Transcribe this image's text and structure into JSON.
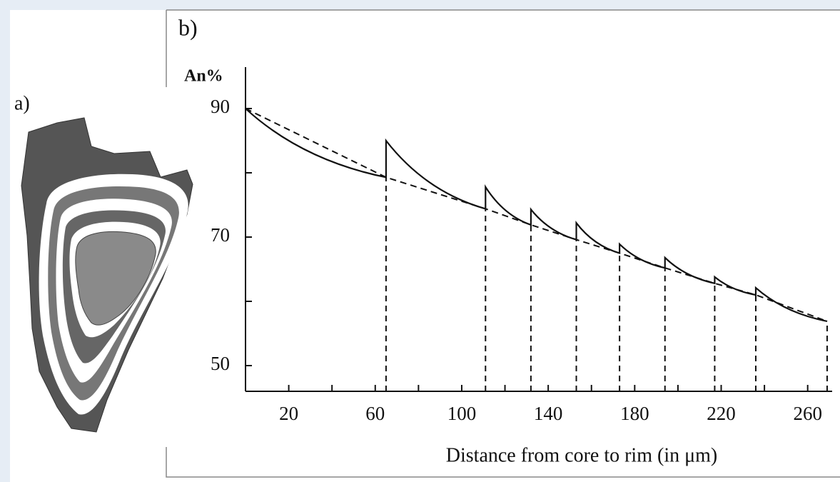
{
  "panel_a": {
    "label": "a)"
  },
  "chart_data": {
    "type": "line",
    "panel_label": "b)",
    "y_label": "An%",
    "x_label": "Distance from core to rim (in μm)",
    "x": [
      0,
      65,
      65,
      111,
      111,
      132,
      132,
      153,
      153,
      173,
      173,
      194,
      194,
      217,
      217,
      236,
      236,
      269
    ],
    "values": [
      90,
      79.3,
      85,
      74.4,
      77.8,
      71.9,
      74.3,
      69.6,
      72.2,
      67.5,
      68.9,
      65.2,
      66.8,
      62.8,
      63.8,
      61,
      62.1,
      56.9
    ],
    "color": "#111111",
    "envelope": {
      "x": [
        0,
        65,
        111,
        132,
        153,
        173,
        194,
        217,
        236,
        269
      ],
      "values": [
        90,
        79.3,
        74.4,
        71.9,
        69.6,
        67.5,
        65.2,
        62.8,
        61,
        56.9
      ]
    },
    "xlim": [
      0,
      270
    ],
    "xticks": [
      20,
      60,
      100,
      140,
      180,
      220,
      260
    ],
    "x_minor_ticks": [
      40,
      80,
      120,
      160,
      200,
      240
    ],
    "ylim": [
      46,
      96
    ],
    "yticks": [
      50,
      70,
      90
    ],
    "y_minor_ticks": [
      60,
      80
    ]
  }
}
